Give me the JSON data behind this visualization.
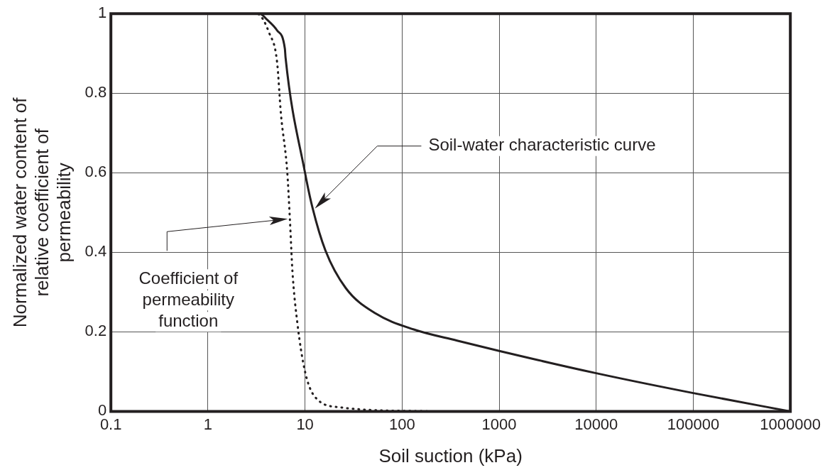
{
  "chart_data": {
    "type": "line",
    "xlabel": "Soil suction (kPa)",
    "ylabel": "Normalized water content of relative coefficient of permeability",
    "log": "x",
    "xlim": [
      0.1,
      1000000
    ],
    "xticks": [
      0.1,
      1,
      10,
      100,
      1000,
      10000,
      100000,
      1000000
    ],
    "ylim": [
      0,
      1
    ],
    "yticks": [
      0,
      0.2,
      0.4,
      0.6,
      0.8,
      1
    ],
    "grid": true,
    "legend": false,
    "marker": "none",
    "series": [
      {
        "x": [
          0.1,
          3.4,
          4.06,
          5.15,
          6.2,
          6.3,
          10,
          12,
          16.2,
          26.3,
          53.5,
          132,
          369,
          1000,
          10000,
          100000,
          1000000
        ],
        "values": [
          1,
          1,
          0.985,
          0.958,
          0.912,
          0.89,
          0.6,
          0.51,
          0.405,
          0.31,
          0.246,
          0.206,
          0.178,
          0.152,
          0.096,
          0.046,
          0
        ],
        "color": "#231f20",
        "line_style": "solid"
      },
      {
        "x": [
          0.1,
          3.18,
          4.3,
          5.15,
          5.65,
          6.56,
          6.98,
          7.42,
          8.36,
          10,
          12.7,
          23.3,
          190
        ],
        "values": [
          1,
          1,
          0.95,
          0.879,
          0.747,
          0.602,
          0.484,
          0.352,
          0.22,
          0.1,
          0.036,
          0.01,
          0
        ],
        "color": "#231f20",
        "line_style": "dotted"
      }
    ],
    "annotations": [
      "Soil-water characteristic curve",
      "Coefficient of permeability function"
    ]
  }
}
